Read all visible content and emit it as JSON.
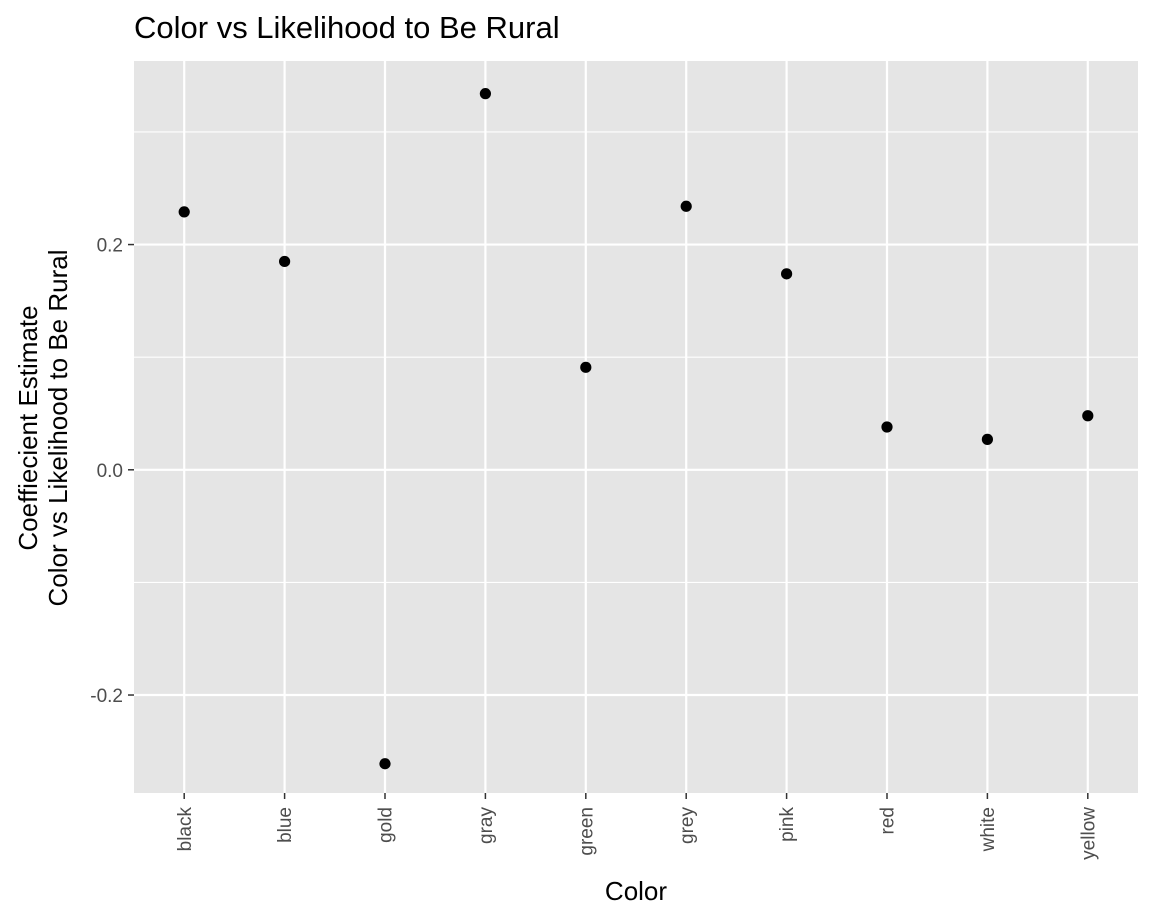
{
  "chart_data": {
    "type": "scatter",
    "title": "Color vs Likelihood to Be Rural",
    "xlabel": "Color",
    "ylabel": [
      "Coeffiecient Estimate",
      "Color vs Likelihood to Be Rural"
    ],
    "categories": [
      "black",
      "blue",
      "gold",
      "gray",
      "green",
      "grey",
      "pink",
      "red",
      "white",
      "yellow"
    ],
    "values": [
      0.229,
      0.185,
      -0.261,
      0.334,
      0.091,
      0.234,
      0.174,
      0.038,
      0.027,
      0.048
    ],
    "ylim": [
      -0.287,
      0.363
    ],
    "yticks": [
      -0.2,
      0.0,
      0.2
    ],
    "ytick_labels": [
      "-0.2",
      "0.0",
      "0.2"
    ],
    "yminor": [
      -0.1,
      0.1,
      0.3
    ],
    "grid": true,
    "colors": {
      "panel": "#e5e5e5",
      "grid": "#ffffff",
      "point": "#000000",
      "tick_text": "#4d4d4d"
    }
  }
}
